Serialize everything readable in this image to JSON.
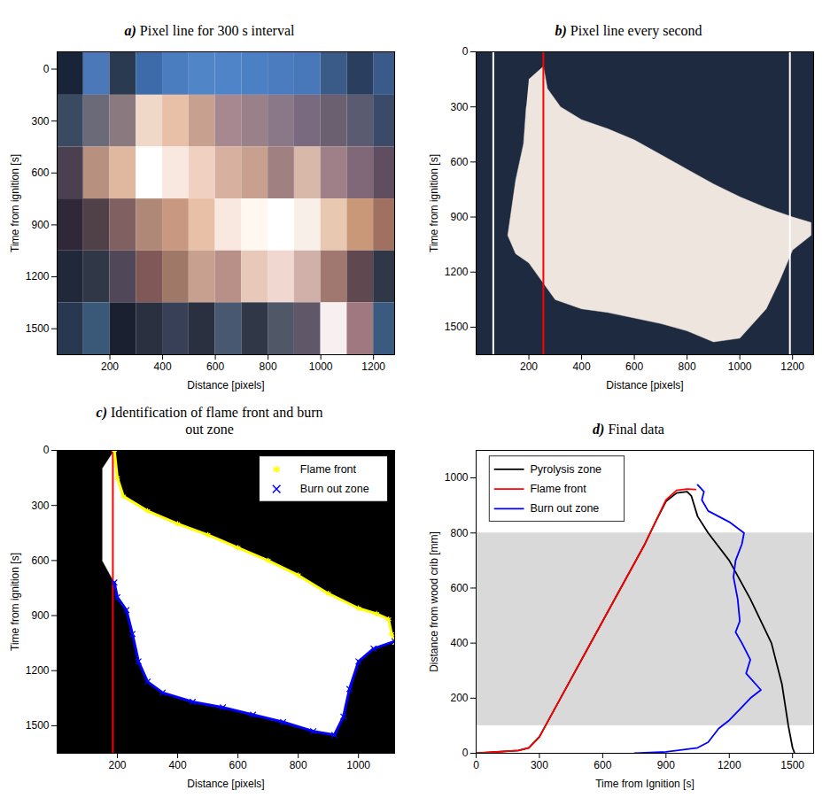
{
  "chart_data": [
    {
      "type": "raster",
      "label": "a)",
      "title": "Pixel line for 300 s interval",
      "x_label": "Distance [pixels]",
      "y_label": "Time from ignition [s]",
      "xlim": [
        0,
        1280
      ],
      "xticks": [
        200,
        400,
        600,
        800,
        1000,
        1200
      ],
      "ylim": [
        1650,
        -100
      ],
      "yticks": [
        0,
        300,
        600,
        900,
        1200,
        1500
      ],
      "x_edges": [
        0,
        100,
        200,
        300,
        400,
        500,
        600,
        700,
        800,
        900,
        1000,
        1100,
        1200,
        1280
      ],
      "y_edges": [
        -100,
        150,
        450,
        750,
        1050,
        1350,
        1650
      ],
      "colors": [
        [
          "#1a2438",
          "#4a78b8",
          "#2a3a50",
          "#3d6aa8",
          "#4a7cc0",
          "#5085c8",
          "#4f84c8",
          "#4c80c4",
          "#4a7cbf",
          "#4878ba",
          "#3a5a88",
          "#2a3e60",
          "#3a5a8a"
        ],
        [
          "#3a4a60",
          "#6a6a78",
          "#8a7a80",
          "#f0d8c8",
          "#e8c0a8",
          "#c8a090",
          "#a88890",
          "#9a8088",
          "#8a7888",
          "#7a6a80",
          "#6a6070",
          "#5a5a70",
          "#3a4a68"
        ],
        [
          "#4a4050",
          "#b89080",
          "#e0b8a0",
          "#ffffff",
          "#f8e8e0",
          "#f0d0c0",
          "#d8b0a0",
          "#c8a090",
          "#a08080",
          "#d8b8a8",
          "#a08088",
          "#806878",
          "#604e60"
        ],
        [
          "#302838",
          "#504048",
          "#806060",
          "#b08878",
          "#c89880",
          "#e8c0a8",
          "#f8e8e0",
          "#fff8f0",
          "#ffffff",
          "#f8f0e8",
          "#e8c8b0",
          "#c89878",
          "#a07060"
        ],
        [
          "#20283a",
          "#303848",
          "#504858",
          "#805858",
          "#a07868",
          "#c8a090",
          "#b89088",
          "#e8c8b8",
          "#f0d8d0",
          "#d0b0a8",
          "#a07870",
          "#604850",
          "#303848"
        ],
        [
          "#283850",
          "#3a5878",
          "#1a2030",
          "#2a3040",
          "#384058",
          "#2a3040",
          "#485870",
          "#303848",
          "#505868",
          "#605868",
          "#f8f0f0",
          "#a07880",
          "#3a5a80"
        ]
      ]
    },
    {
      "type": "region",
      "label": "b)",
      "title": "Pixel line every second",
      "x_label": "Distance [pixels]",
      "y_label": "Time from ignition [s]",
      "xlim": [
        0,
        1280
      ],
      "xticks": [
        200,
        400,
        600,
        800,
        1000,
        1200
      ],
      "ylim": [
        1650,
        0
      ],
      "yticks": [
        0,
        300,
        600,
        900,
        1200,
        1500
      ],
      "series": [
        {
          "type": "region",
          "color": "#eee6de",
          "x": [
            200,
            255,
            270,
            320,
            400,
            500,
            600,
            700,
            800,
            900,
            1000,
            1100,
            1200,
            1270,
            1270,
            1200,
            1150,
            1100,
            1000,
            900,
            800,
            700,
            600,
            500,
            400,
            300,
            250,
            200,
            150,
            120,
            150,
            180,
            190
          ],
          "values": [
            150,
            80,
            200,
            300,
            370,
            420,
            480,
            560,
            640,
            720,
            790,
            850,
            900,
            930,
            1000,
            1080,
            1250,
            1400,
            1560,
            1580,
            1520,
            1480,
            1450,
            1420,
            1400,
            1350,
            1250,
            1150,
            1100,
            1000,
            700,
            500,
            300
          ]
        },
        {
          "type": "rule",
          "color": "#ffffff",
          "x": [
            65,
            1190
          ]
        },
        {
          "type": "rule",
          "color": "#ff0000",
          "x": [
            255
          ]
        }
      ]
    },
    {
      "type": "region",
      "label": "c)",
      "title": "Identification of flame front and burn out zone",
      "x_label": "Distance [pixels]",
      "y_label": "Time from ignition [s]",
      "xlim": [
        0,
        1120
      ],
      "xticks": [
        200,
        400,
        600,
        800,
        1000
      ],
      "ylim": [
        1650,
        0
      ],
      "yticks": [
        0,
        300,
        600,
        900,
        1200,
        1500
      ],
      "legend": "top-right",
      "series": [
        {
          "type": "region",
          "color": "#ffffff",
          "x": [
            150,
            190,
            200,
            220,
            300,
            400,
            500,
            600,
            700,
            800,
            900,
            1000,
            1060,
            1100,
            1110,
            1120,
            1120,
            1050,
            1000,
            970,
            950,
            920,
            850,
            750,
            650,
            550,
            450,
            350,
            300,
            270,
            250,
            230,
            200,
            190,
            150
          ],
          "values": [
            100,
            0,
            150,
            250,
            330,
            400,
            460,
            530,
            600,
            680,
            780,
            860,
            890,
            920,
            1000,
            1050,
            1040,
            1080,
            1150,
            1300,
            1450,
            1550,
            1530,
            1480,
            1440,
            1400,
            1370,
            1320,
            1260,
            1150,
            1000,
            870,
            800,
            720,
            600
          ]
        },
        {
          "type": "rule",
          "color": "#ff0000",
          "x": [
            185
          ]
        },
        {
          "type": "line",
          "name": "Flame front",
          "color": "#ffff00",
          "marker": "asterisk",
          "x": [
            190,
            200,
            220,
            300,
            400,
            500,
            600,
            700,
            800,
            900,
            1000,
            1060,
            1100,
            1110,
            1120
          ],
          "values": [
            0,
            150,
            250,
            330,
            400,
            460,
            530,
            600,
            680,
            780,
            860,
            890,
            920,
            1000,
            1050
          ]
        },
        {
          "type": "line",
          "name": "Burn out zone",
          "color": "#0000ff",
          "marker": "times",
          "x": [
            190,
            200,
            230,
            250,
            270,
            300,
            350,
            450,
            550,
            650,
            750,
            850,
            920,
            950,
            970,
            1000,
            1050,
            1120
          ],
          "values": [
            720,
            800,
            870,
            1000,
            1150,
            1260,
            1320,
            1370,
            1400,
            1440,
            1480,
            1530,
            1550,
            1450,
            1300,
            1150,
            1080,
            1040
          ]
        }
      ]
    },
    {
      "type": "line",
      "label": "d)",
      "title": "Final data",
      "x_label": "Time from Ignition [s]",
      "y_label": "Distance from wood crib [mm]",
      "xlim": [
        0,
        1600
      ],
      "xticks": [
        0,
        300,
        600,
        900,
        1200,
        1500
      ],
      "ylim": [
        0,
        1100
      ],
      "yticks": [
        0,
        200,
        400,
        600,
        800,
        1000
      ],
      "legend": "top-left",
      "shaded": {
        "y": [
          100,
          800
        ],
        "color": "#d9d9d9"
      },
      "series": [
        {
          "name": "Pyrolysis zone",
          "color": "#000000",
          "x": [
            0,
            200,
            250,
            300,
            400,
            500,
            600,
            700,
            800,
            850,
            900,
            950,
            1000,
            1020,
            1050,
            1100,
            1200,
            1300,
            1400,
            1450,
            1480,
            1500,
            1510
          ],
          "values": [
            0,
            10,
            20,
            60,
            200,
            340,
            480,
            620,
            760,
            840,
            915,
            945,
            950,
            935,
            860,
            800,
            700,
            560,
            400,
            250,
            100,
            20,
            0
          ]
        },
        {
          "name": "Flame front",
          "color": "#ff0000",
          "x": [
            0,
            200,
            250,
            300,
            400,
            500,
            600,
            700,
            800,
            850,
            900,
            950,
            1000,
            1040
          ],
          "values": [
            0,
            10,
            20,
            60,
            200,
            340,
            480,
            620,
            760,
            840,
            920,
            955,
            960,
            958
          ]
        },
        {
          "name": "Burn out zone",
          "color": "#0000ff",
          "x": [
            1050,
            1080,
            1070,
            1100,
            1200,
            1270,
            1260,
            1230,
            1220,
            1240,
            1250,
            1230,
            1260,
            1300,
            1280,
            1350,
            1300,
            1250,
            1200,
            1150,
            1100,
            1050,
            900,
            750
          ],
          "values": [
            975,
            950,
            920,
            880,
            840,
            800,
            760,
            700,
            640,
            560,
            480,
            440,
            400,
            340,
            290,
            230,
            200,
            160,
            120,
            90,
            40,
            20,
            5,
            0
          ]
        }
      ]
    }
  ]
}
